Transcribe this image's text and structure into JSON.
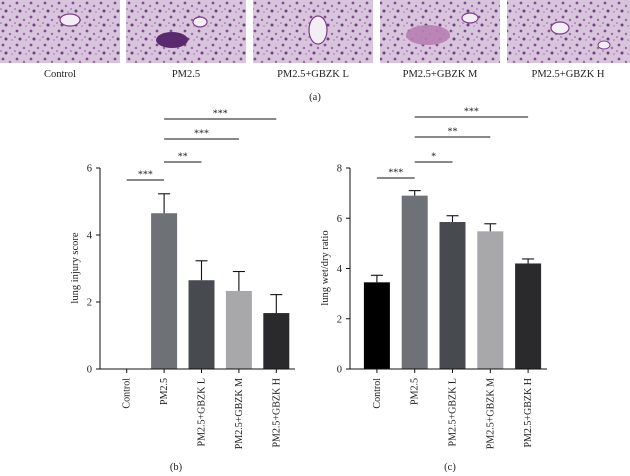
{
  "histology": {
    "labels": [
      "Control",
      "PM2.5",
      "PM2.5+GBZK L",
      "PM2.5+GBZK M",
      "PM2.5+GBZK H"
    ],
    "panel_label": "(a)"
  },
  "chart_data": [
    {
      "type": "bar",
      "panel_label": "(b)",
      "categories": [
        "Control",
        "PM2.5",
        "PM2.5+GBZK L",
        "PM2.5+GBZK M",
        "PM2.5+GBZK H"
      ],
      "series": [
        {
          "values": [
            0,
            4.65,
            2.65,
            2.33,
            1.67
          ],
          "errors": [
            0,
            0.58,
            0.58,
            0.58,
            0.55
          ]
        }
      ],
      "bar_colors": [
        "#000000",
        "#6e7276",
        "#474b4f",
        "#a8a8aa",
        "#2a2a2c"
      ],
      "ylabel": "lung injury score",
      "ylim": [
        0,
        6
      ],
      "yticks": [
        "0",
        "2",
        "4",
        "6"
      ],
      "grid": false,
      "significance": [
        {
          "from": "Control",
          "to": "PM2.5",
          "label": "***"
        },
        {
          "from": "PM2.5",
          "to": "PM2.5+GBZK L",
          "label": "**"
        },
        {
          "from": "PM2.5",
          "to": "PM2.5+GBZK M",
          "label": "***"
        },
        {
          "from": "PM2.5",
          "to": "PM2.5+GBZK H",
          "label": "***"
        }
      ]
    },
    {
      "type": "bar",
      "panel_label": "(c)",
      "categories": [
        "Control",
        "PM2.5",
        "PM2.5+GBZK L",
        "PM2.5+GBZK M",
        "PM2.5+GBZK H"
      ],
      "series": [
        {
          "values": [
            3.45,
            6.9,
            5.85,
            5.48,
            4.2
          ],
          "errors": [
            0.28,
            0.2,
            0.25,
            0.3,
            0.18
          ]
        }
      ],
      "bar_colors": [
        "#000000",
        "#6e7276",
        "#474b4f",
        "#a8a8aa",
        "#2a2a2c"
      ],
      "ylabel": "lung wet/dry ratio",
      "ylim": [
        0,
        8
      ],
      "yticks": [
        "0",
        "2",
        "4",
        "6",
        "8"
      ],
      "grid": false,
      "significance": [
        {
          "from": "Control",
          "to": "PM2.5",
          "label": "***"
        },
        {
          "from": "PM2.5",
          "to": "PM2.5+GBZK L",
          "label": "*"
        },
        {
          "from": "PM2.5",
          "to": "PM2.5+GBZK M",
          "label": "**"
        },
        {
          "from": "PM2.5",
          "to": "PM2.5+GBZK H",
          "label": "***"
        }
      ]
    }
  ]
}
